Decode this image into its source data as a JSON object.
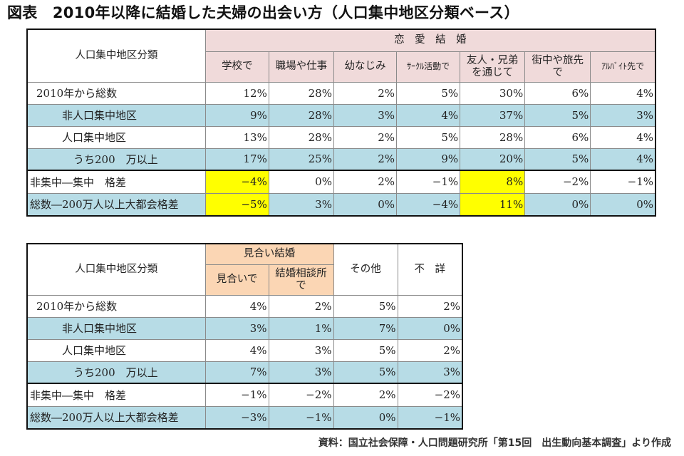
{
  "title": "図表　2010年以降に結婚した夫婦の出会い方（人口集中地区分類ベース）",
  "table1": {
    "category_label": "人口集中地区分類",
    "group_label": "恋　愛　結　婚",
    "columns": [
      "学校で",
      "職場や仕事",
      "幼なじみ",
      "ｻｰｸﾙ活動で",
      "友人・兄弟を通じて",
      "街中や旅先で",
      "ｱﾙﾊﾞｲﾄ先で"
    ],
    "rows": [
      {
        "label": "2010年から総数",
        "values": [
          "12%",
          "28%",
          "2%",
          "5%",
          "30%",
          "6%",
          "4%"
        ]
      },
      {
        "label": "非人口集中地区",
        "values": [
          "9%",
          "28%",
          "3%",
          "4%",
          "37%",
          "5%",
          "3%"
        ]
      },
      {
        "label": "人口集中地区",
        "values": [
          "13%",
          "28%",
          "2%",
          "5%",
          "28%",
          "6%",
          "4%"
        ]
      },
      {
        "label": "うち200　万以上",
        "values": [
          "17%",
          "25%",
          "2%",
          "9%",
          "20%",
          "5%",
          "4%"
        ]
      },
      {
        "label": "非集中―集中　格差",
        "values": [
          "−4%",
          "0%",
          "2%",
          "−1%",
          "8%",
          "−2%",
          "−1%"
        ]
      },
      {
        "label": "総数―200万人以上大都会格差",
        "values": [
          "−5%",
          "3%",
          "0%",
          "−4%",
          "11%",
          "0%",
          "0%"
        ]
      }
    ]
  },
  "table2": {
    "category_label": "人口集中地区分類",
    "group_label": "見合い結婚",
    "columns": [
      "見合いで",
      "結婚相談所で"
    ],
    "other_label": "その他",
    "unknown_label": "不　詳",
    "rows": [
      {
        "label": "2010年から総数",
        "values": [
          "4%",
          "2%",
          "5%",
          "2%"
        ]
      },
      {
        "label": "非人口集中地区",
        "values": [
          "3%",
          "1%",
          "7%",
          "0%"
        ]
      },
      {
        "label": "人口集中地区",
        "values": [
          "4%",
          "3%",
          "5%",
          "2%"
        ]
      },
      {
        "label": "うち200　万以上",
        "values": [
          "7%",
          "3%",
          "5%",
          "3%"
        ]
      },
      {
        "label": "非集中―集中　格差",
        "values": [
          "−1%",
          "−2%",
          "2%",
          "−2%"
        ]
      },
      {
        "label": "総数―200万人以上大都会格差",
        "values": [
          "−3%",
          "−1%",
          "0%",
          "−1%"
        ]
      }
    ]
  },
  "source": "資料：国立社会保障・人口問題研究所「第15回　出生動向基本調査」より作成",
  "colors": {
    "pink": "#f0dada",
    "orange": "#fbd6b4",
    "blue": "#b7dce6",
    "yellow": "#ffff00"
  }
}
